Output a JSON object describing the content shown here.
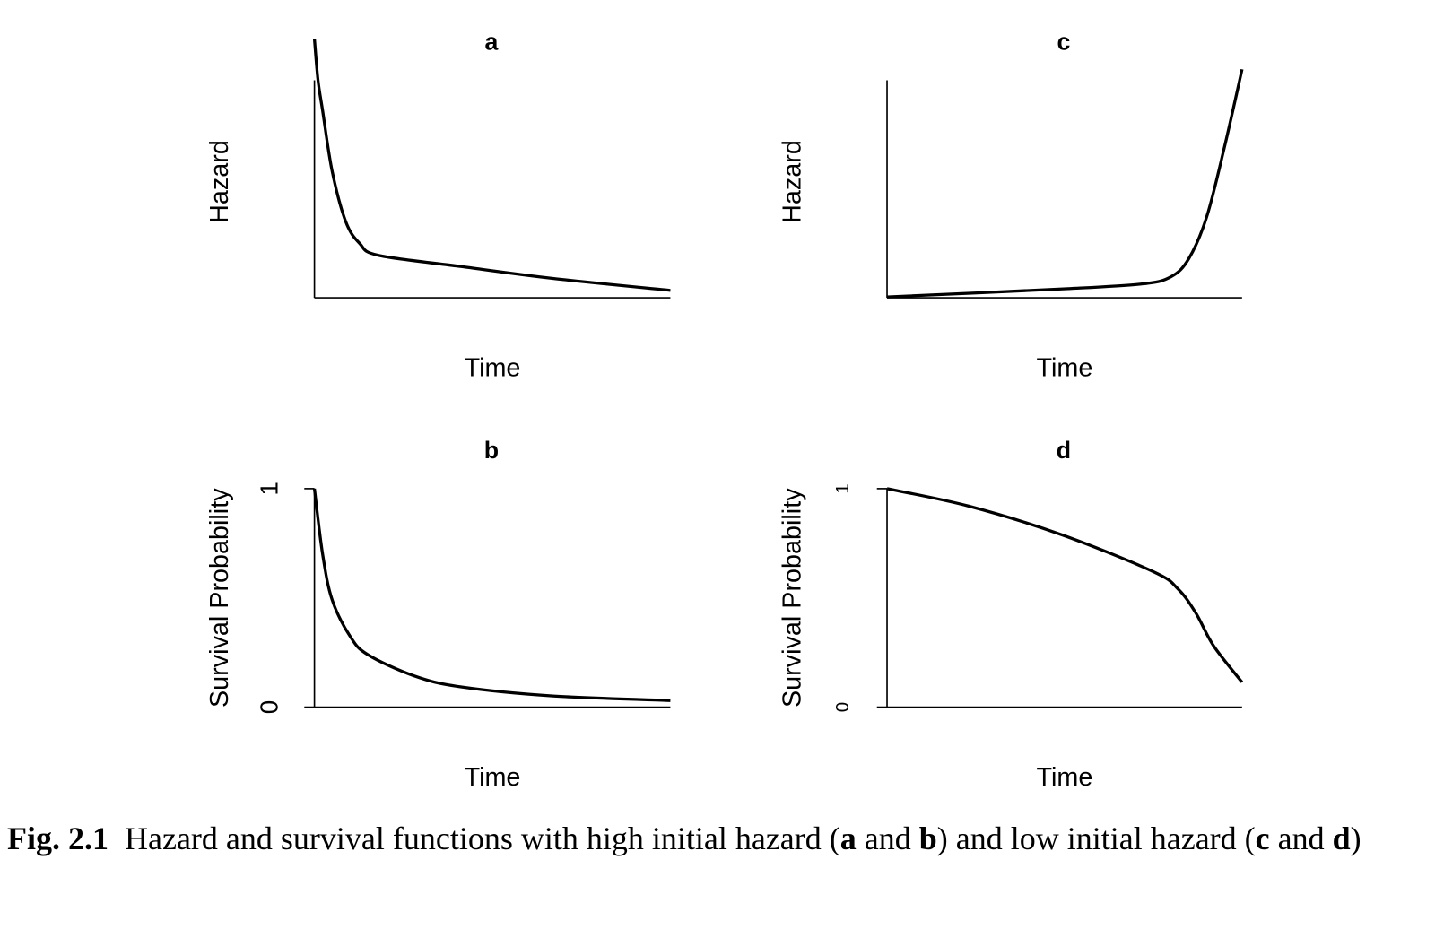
{
  "chart_data": [
    {
      "type": "line",
      "title": "a",
      "ylabel": "Hazard",
      "xlabel": "Time",
      "color": "#000000",
      "x": [
        0,
        0.01,
        0.023,
        0.05,
        0.088,
        0.127,
        0.18,
        0.41,
        0.67,
        1
      ],
      "values": [
        1.19,
        1.0,
        0.86,
        0.58,
        0.35,
        0.25,
        0.195,
        0.144,
        0.089,
        0.034
      ],
      "xlim": [
        0,
        1
      ],
      "ylim": [
        0,
        1
      ]
    },
    {
      "type": "line",
      "title": "b",
      "ylabel": "Survival Probability",
      "xlabel": "Time",
      "color": "#000000",
      "x": [
        0,
        0.023,
        0.05,
        0.1,
        0.15,
        0.28,
        0.41,
        0.67,
        1
      ],
      "values": [
        1,
        0.7,
        0.49,
        0.325,
        0.24,
        0.143,
        0.093,
        0.051,
        0.03
      ],
      "xlim": [
        0,
        1
      ],
      "ylim": [
        0,
        1
      ],
      "yticks": [
        0,
        1
      ]
    },
    {
      "type": "line",
      "title": "c",
      "ylabel": "Hazard",
      "xlabel": "Time",
      "color": "#000000",
      "x": [
        0,
        0.51,
        0.72,
        0.8,
        0.85,
        0.9,
        0.95,
        1
      ],
      "values": [
        0.004,
        0.042,
        0.064,
        0.097,
        0.18,
        0.37,
        0.69,
        1.05
      ],
      "xlim": [
        0,
        1
      ],
      "ylim": [
        0,
        1
      ]
    },
    {
      "type": "line",
      "title": "d",
      "ylabel": "Survival Probability",
      "xlabel": "Time",
      "color": "#000000",
      "x": [
        0,
        0.23,
        0.49,
        0.75,
        0.82,
        0.87,
        0.92,
        1
      ],
      "values": [
        1,
        0.92,
        0.79,
        0.62,
        0.54,
        0.43,
        0.28,
        0.114
      ],
      "xlim": [
        0,
        1
      ],
      "ylim": [
        0,
        1
      ],
      "yticks": [
        0,
        1
      ],
      "small_ticks": true
    }
  ],
  "caption": [
    {
      "text": "Fig. 2.1",
      "bold": true
    },
    {
      "text": "  Hazard and survival functions with high initial hazard (",
      "bold": false
    },
    {
      "text": "a",
      "bold": true
    },
    {
      "text": " and ",
      "bold": false
    },
    {
      "text": "b",
      "bold": true
    },
    {
      "text": ") and low initial hazard (",
      "bold": false
    },
    {
      "text": "c",
      "bold": true
    },
    {
      "text": " and ",
      "bold": false
    },
    {
      "text": "d",
      "bold": true
    },
    {
      "text": ")",
      "bold": false
    }
  ]
}
